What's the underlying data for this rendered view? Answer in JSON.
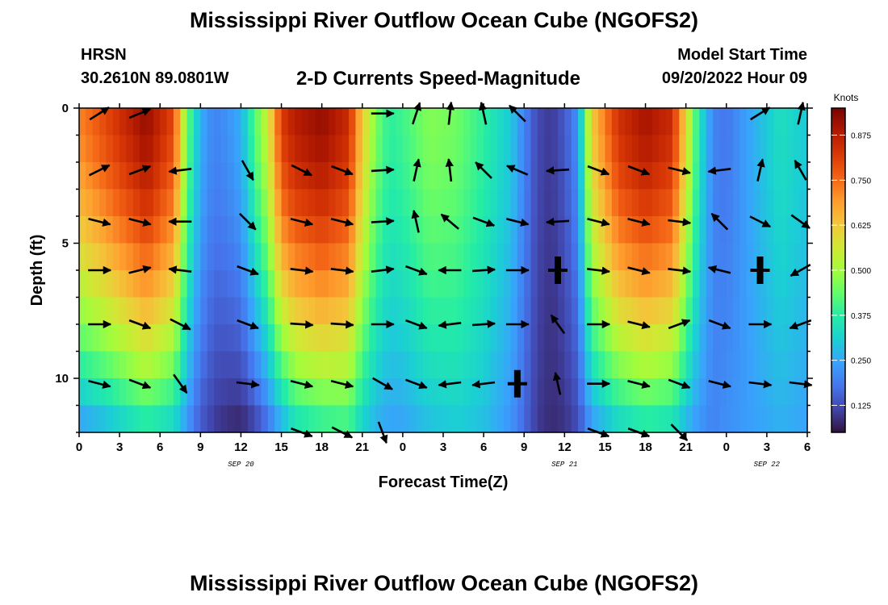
{
  "page": {
    "title": "Mississippi River Outflow Ocean Cube (NGOFS2)",
    "title_repeat": "Mississippi River Outflow Ocean Cube (NGOFS2)",
    "station": "HRSN",
    "coordinates": "30.2610N  89.0801W",
    "subtitle": "2-D Currents Speed-Magnitude",
    "model_start_label": "Model Start Time",
    "model_start_value": "09/20/2022 Hour 09"
  },
  "chart_data": {
    "type": "heatmap",
    "title": "2-D Currents Speed-Magnitude",
    "xlabel": "Forecast Time(Z)",
    "ylabel": "Depth (ft)",
    "x_tick_labels": [
      "0",
      "3",
      "6",
      "9",
      "12",
      "15",
      "18",
      "21",
      "0",
      "3",
      "6",
      "9",
      "12",
      "15",
      "18",
      "21",
      "0",
      "3",
      "6"
    ],
    "date_labels": [
      {
        "text": "SEP 20",
        "at_tick": 4
      },
      {
        "text": "SEP 21",
        "at_tick": 12
      },
      {
        "text": "SEP 22",
        "at_tick": 17
      }
    ],
    "y_tick_labels": [
      "0",
      "5",
      "10"
    ],
    "y_range": [
      0,
      12
    ],
    "x_range_hours": [
      0,
      54
    ],
    "colorbar": {
      "unit": "Knots",
      "ticks": [
        0.125,
        0.25,
        0.375,
        0.5,
        0.625,
        0.75,
        0.875
      ],
      "tick_labels": [
        "0.125",
        "0.250",
        "0.375",
        "0.500",
        "0.625",
        "0.750",
        "0.875"
      ],
      "range": [
        0.05,
        0.95
      ],
      "colors": [
        "#30123b",
        "#4145ab",
        "#4675ed",
        "#39a2fc",
        "#1bcfd4",
        "#24eca6",
        "#61fc6c",
        "#a4fc3b",
        "#d1e834",
        "#f3c63a",
        "#fe9b2d",
        "#f36315",
        "#d93806",
        "#b11901",
        "#7a0402"
      ]
    },
    "speed_profile": {
      "hours": [
        0,
        2,
        5,
        7,
        8,
        9,
        10,
        11,
        12,
        13,
        14,
        15,
        16,
        18,
        20,
        21,
        22,
        23,
        24,
        26,
        28,
        30,
        32,
        33,
        34,
        35,
        36,
        37,
        38,
        40,
        42,
        44,
        45,
        46,
        47,
        48,
        50,
        52,
        54
      ],
      "surface": [
        0.72,
        0.8,
        0.92,
        0.8,
        0.45,
        0.26,
        0.2,
        0.22,
        0.26,
        0.42,
        0.55,
        0.82,
        0.88,
        0.92,
        0.85,
        0.62,
        0.46,
        0.38,
        0.4,
        0.47,
        0.45,
        0.38,
        0.3,
        0.2,
        0.12,
        0.1,
        0.14,
        0.22,
        0.62,
        0.84,
        0.9,
        0.85,
        0.6,
        0.35,
        0.2,
        0.18,
        0.26,
        0.34,
        0.3
      ],
      "bottom": [
        0.22,
        0.26,
        0.34,
        0.3,
        0.22,
        0.14,
        0.1,
        0.08,
        0.07,
        0.1,
        0.16,
        0.24,
        0.32,
        0.36,
        0.38,
        0.3,
        0.26,
        0.24,
        0.24,
        0.28,
        0.3,
        0.28,
        0.22,
        0.16,
        0.1,
        0.08,
        0.09,
        0.12,
        0.22,
        0.3,
        0.34,
        0.32,
        0.26,
        0.22,
        0.2,
        0.22,
        0.24,
        0.26,
        0.24
      ]
    },
    "vectors": {
      "hours": [
        1.5,
        4.5,
        7.5,
        12.5,
        16.5,
        19.5,
        22.5,
        25.0,
        27.5,
        30.0,
        32.5,
        35.5,
        38.5,
        41.5,
        44.5,
        47.5,
        50.5,
        53.5
      ],
      "depths": [
        0.2,
        2.3,
        4.2,
        6.0,
        8.0,
        10.2,
        12.0
      ],
      "rows": [
        [
          [
            0.55,
            0.35
          ],
          [
            0.6,
            0.25
          ],
          null,
          null,
          null,
          null,
          [
            0.6,
            0.0
          ],
          [
            0.3,
            0.9
          ],
          [
            0.1,
            0.9
          ],
          [
            -0.2,
            0.9
          ],
          [
            -0.6,
            0.6
          ],
          null,
          null,
          null,
          null,
          null,
          [
            0.8,
            0.5
          ],
          [
            0.2,
            0.9
          ]
        ],
        [
          [
            0.7,
            0.35
          ],
          [
            0.8,
            0.3
          ],
          [
            -0.8,
            -0.1
          ],
          [
            0.4,
            -0.7
          ],
          [
            0.8,
            -0.4
          ],
          [
            0.8,
            -0.3
          ],
          [
            0.8,
            0.05
          ],
          [
            0.2,
            0.9
          ],
          [
            -0.1,
            0.9
          ],
          [
            -0.6,
            0.6
          ],
          [
            -0.7,
            0.3
          ],
          [
            -0.8,
            -0.05
          ],
          [
            0.8,
            -0.3
          ],
          [
            0.8,
            -0.3
          ],
          [
            0.8,
            -0.2
          ],
          [
            -0.8,
            -0.1
          ],
          [
            0.2,
            0.9
          ],
          [
            -0.4,
            0.7
          ]
        ],
        [
          [
            0.8,
            -0.2
          ],
          [
            0.8,
            -0.2
          ],
          [
            -0.8,
            0.0
          ],
          [
            0.6,
            -0.6
          ],
          [
            0.8,
            -0.2
          ],
          [
            0.8,
            -0.2
          ],
          [
            0.8,
            0.05
          ],
          [
            -0.2,
            0.9
          ],
          [
            -0.6,
            0.5
          ],
          [
            0.8,
            -0.3
          ],
          [
            0.8,
            -0.2
          ],
          [
            -0.8,
            -0.05
          ],
          [
            0.8,
            -0.2
          ],
          [
            0.8,
            -0.2
          ],
          [
            0.8,
            -0.1
          ],
          [
            -0.6,
            0.6
          ],
          [
            0.8,
            -0.4
          ],
          [
            0.7,
            -0.5
          ]
        ],
        [
          [
            0.8,
            0.0
          ],
          [
            0.8,
            0.2
          ],
          [
            -0.8,
            0.1
          ],
          [
            0.8,
            -0.3
          ],
          [
            0.8,
            -0.1
          ],
          [
            0.8,
            -0.1
          ],
          [
            0.8,
            0.1
          ],
          [
            0.8,
            -0.3
          ],
          [
            -0.8,
            0.0
          ],
          [
            0.8,
            0.05
          ],
          [
            0.8,
            0.0
          ],
          [
            0.0,
            0.0
          ],
          [
            0.8,
            -0.1
          ],
          [
            0.8,
            -0.2
          ],
          [
            0.8,
            -0.1
          ],
          [
            -0.8,
            0.2
          ],
          [
            0.0,
            0.0
          ],
          [
            -0.7,
            -0.4
          ]
        ],
        [
          [
            0.8,
            0.0
          ],
          [
            0.8,
            -0.3
          ],
          [
            0.8,
            -0.4
          ],
          [
            0.8,
            -0.3
          ],
          [
            0.8,
            -0.05
          ],
          [
            0.8,
            -0.05
          ],
          [
            0.8,
            0.0
          ],
          [
            0.8,
            -0.3
          ],
          [
            -0.8,
            -0.1
          ],
          [
            0.8,
            0.05
          ],
          [
            0.8,
            0.0
          ],
          [
            -0.5,
            0.7
          ],
          [
            0.8,
            0.0
          ],
          [
            0.8,
            -0.2
          ],
          [
            0.8,
            0.3
          ],
          [
            0.8,
            -0.3
          ],
          [
            0.8,
            0.0
          ],
          [
            -0.8,
            -0.3
          ]
        ],
        [
          [
            0.8,
            -0.2
          ],
          [
            0.8,
            -0.3
          ],
          [
            0.5,
            -0.7
          ],
          [
            0.8,
            -0.1
          ],
          [
            0.8,
            -0.2
          ],
          [
            0.8,
            -0.2
          ],
          [
            0.7,
            -0.4
          ],
          [
            0.8,
            -0.3
          ],
          [
            -0.8,
            -0.1
          ],
          [
            -0.8,
            -0.1
          ],
          [
            0.0,
            0.0
          ],
          [
            -0.2,
            0.9
          ],
          [
            0.8,
            0.0
          ],
          [
            0.8,
            -0.2
          ],
          [
            0.8,
            -0.3
          ],
          [
            0.8,
            -0.2
          ],
          [
            0.8,
            -0.1
          ],
          [
            0.8,
            -0.1
          ]
        ],
        [
          null,
          null,
          null,
          null,
          [
            0.8,
            -0.3
          ],
          [
            0.8,
            -0.4
          ],
          [
            0.3,
            -0.8
          ],
          null,
          null,
          null,
          null,
          null,
          [
            0.8,
            -0.3
          ],
          [
            0.8,
            -0.3
          ],
          [
            0.6,
            -0.6
          ],
          null,
          null,
          null
        ]
      ]
    },
    "legend": "right colorbar"
  }
}
